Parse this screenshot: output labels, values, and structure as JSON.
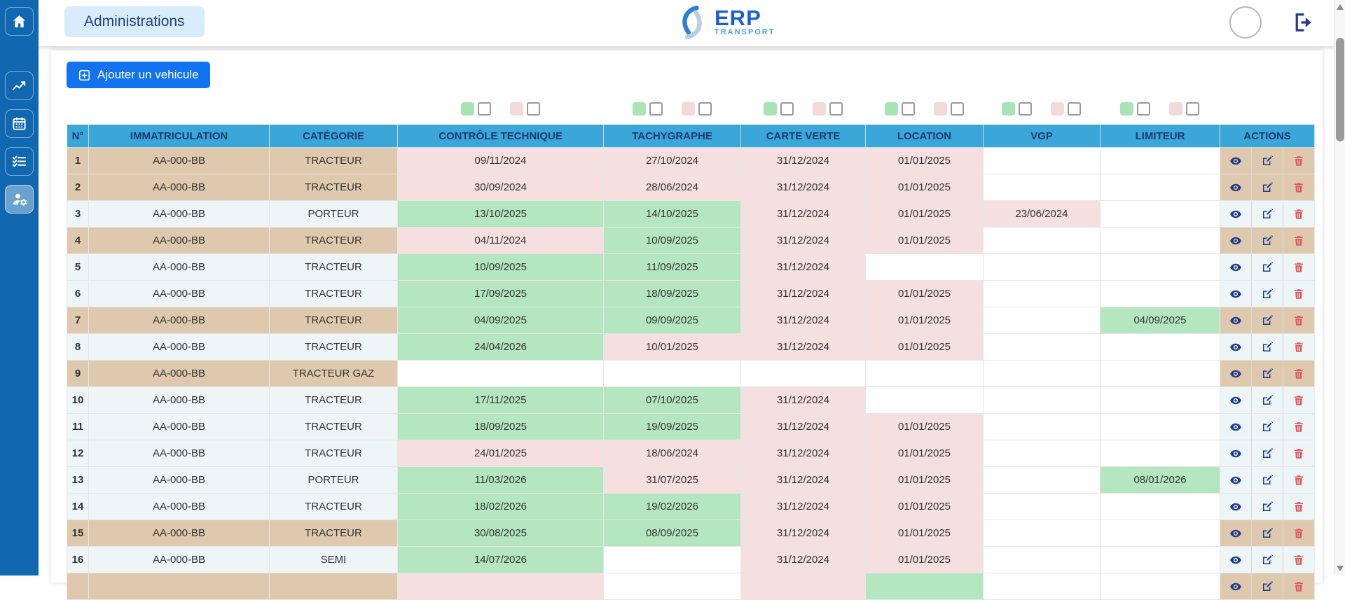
{
  "header": {
    "page_chip": "Administrations",
    "logo": {
      "erp": "ERP",
      "transport": "TRANSPORT"
    }
  },
  "sidebar": {
    "items": [
      {
        "name": "home",
        "icon": "home-icon",
        "active": false
      },
      {
        "name": "statistics",
        "icon": "chart-line-icon",
        "active": false
      },
      {
        "name": "calendar",
        "icon": "calendar-icon",
        "active": false
      },
      {
        "name": "tasks",
        "icon": "checklist-icon",
        "active": false
      },
      {
        "name": "administration",
        "icon": "user-settings-icon",
        "active": true
      }
    ]
  },
  "toolbar": {
    "add_button": "Ajouter un vehicule",
    "add_icon": "plus-square-icon"
  },
  "topbar_icons": {
    "avatar": "avatar-circle",
    "logout": "logout-icon"
  },
  "legend": {
    "groups": [
      {
        "column": "CONTRÔLE TECHNIQUE",
        "pairs": [
          {
            "color": "green",
            "checked": false
          },
          {
            "color": "pink",
            "checked": false
          }
        ]
      },
      {
        "column": "TACHYGRAPHE",
        "pairs": [
          {
            "color": "green",
            "checked": false
          },
          {
            "color": "pink",
            "checked": false
          }
        ]
      },
      {
        "column": "CARTE VERTE",
        "pairs": [
          {
            "color": "green",
            "checked": false
          },
          {
            "color": "pink",
            "checked": false
          }
        ]
      },
      {
        "column": "LOCATION",
        "pairs": [
          {
            "color": "green",
            "checked": false
          },
          {
            "color": "pink",
            "checked": false
          }
        ]
      },
      {
        "column": "VGP",
        "pairs": [
          {
            "color": "green",
            "checked": false
          },
          {
            "color": "pink",
            "checked": false
          }
        ]
      },
      {
        "column": "LIMITEUR",
        "pairs": [
          {
            "color": "green",
            "checked": false
          },
          {
            "color": "pink",
            "checked": false
          }
        ]
      }
    ]
  },
  "table": {
    "columns": [
      "N°",
      "IMMATRICULATION",
      "CATÉGORIE",
      "CONTRÔLE TECHNIQUE",
      "TACHYGRAPHE",
      "CARTE VERTE",
      "LOCATION",
      "VGP",
      "LIMITEUR",
      "ACTIONS"
    ],
    "action_icons": [
      "eye-icon",
      "edit-icon",
      "trash-icon"
    ],
    "rows": [
      {
        "n": "1",
        "immat": "AA-000-BB",
        "cat": "TRACTEUR",
        "shade": "tan",
        "ct": {
          "value": "09/11/2024",
          "status": "late"
        },
        "tachy": {
          "value": "27/10/2024",
          "status": "late"
        },
        "cv": {
          "value": "31/12/2024",
          "status": "late"
        },
        "loc": {
          "value": "01/01/2025",
          "status": "late"
        },
        "vgp": {
          "value": "",
          "status": "none"
        },
        "lim": {
          "value": "",
          "status": "none"
        }
      },
      {
        "n": "2",
        "immat": "AA-000-BB",
        "cat": "TRACTEUR",
        "shade": "tan",
        "ct": {
          "value": "30/09/2024",
          "status": "late"
        },
        "tachy": {
          "value": "28/06/2024",
          "status": "late"
        },
        "cv": {
          "value": "31/12/2024",
          "status": "late"
        },
        "loc": {
          "value": "01/01/2025",
          "status": "late"
        },
        "vgp": {
          "value": "",
          "status": "none"
        },
        "lim": {
          "value": "",
          "status": "none"
        }
      },
      {
        "n": "3",
        "immat": "AA-000-BB",
        "cat": "PORTEUR",
        "shade": "light",
        "ct": {
          "value": "13/10/2025",
          "status": "ok"
        },
        "tachy": {
          "value": "14/10/2025",
          "status": "ok"
        },
        "cv": {
          "value": "31/12/2024",
          "status": "late"
        },
        "loc": {
          "value": "01/01/2025",
          "status": "late"
        },
        "vgp": {
          "value": "23/06/2024",
          "status": "late"
        },
        "lim": {
          "value": "",
          "status": "none"
        }
      },
      {
        "n": "4",
        "immat": "AA-000-BB",
        "cat": "TRACTEUR",
        "shade": "tan",
        "ct": {
          "value": "04/11/2024",
          "status": "late"
        },
        "tachy": {
          "value": "10/09/2025",
          "status": "ok"
        },
        "cv": {
          "value": "31/12/2024",
          "status": "late"
        },
        "loc": {
          "value": "01/01/2025",
          "status": "late"
        },
        "vgp": {
          "value": "",
          "status": "none"
        },
        "lim": {
          "value": "",
          "status": "none"
        }
      },
      {
        "n": "5",
        "immat": "AA-000-BB",
        "cat": "TRACTEUR",
        "shade": "light",
        "ct": {
          "value": "10/09/2025",
          "status": "ok"
        },
        "tachy": {
          "value": "11/09/2025",
          "status": "ok"
        },
        "cv": {
          "value": "31/12/2024",
          "status": "late"
        },
        "loc": {
          "value": "",
          "status": "none"
        },
        "vgp": {
          "value": "",
          "status": "none"
        },
        "lim": {
          "value": "",
          "status": "none"
        }
      },
      {
        "n": "6",
        "immat": "AA-000-BB",
        "cat": "TRACTEUR",
        "shade": "light",
        "ct": {
          "value": "17/09/2025",
          "status": "ok"
        },
        "tachy": {
          "value": "18/09/2025",
          "status": "ok"
        },
        "cv": {
          "value": "31/12/2024",
          "status": "late"
        },
        "loc": {
          "value": "01/01/2025",
          "status": "late"
        },
        "vgp": {
          "value": "",
          "status": "none"
        },
        "lim": {
          "value": "",
          "status": "none"
        }
      },
      {
        "n": "7",
        "immat": "AA-000-BB",
        "cat": "TRACTEUR",
        "shade": "tan",
        "ct": {
          "value": "04/09/2025",
          "status": "ok"
        },
        "tachy": {
          "value": "09/09/2025",
          "status": "ok"
        },
        "cv": {
          "value": "31/12/2024",
          "status": "late"
        },
        "loc": {
          "value": "01/01/2025",
          "status": "late"
        },
        "vgp": {
          "value": "",
          "status": "none"
        },
        "lim": {
          "value": "04/09/2025",
          "status": "ok"
        }
      },
      {
        "n": "8",
        "immat": "AA-000-BB",
        "cat": "TRACTEUR",
        "shade": "light",
        "ct": {
          "value": "24/04/2026",
          "status": "ok"
        },
        "tachy": {
          "value": "10/01/2025",
          "status": "late"
        },
        "cv": {
          "value": "31/12/2024",
          "status": "late"
        },
        "loc": {
          "value": "01/01/2025",
          "status": "late"
        },
        "vgp": {
          "value": "",
          "status": "none"
        },
        "lim": {
          "value": "",
          "status": "none"
        }
      },
      {
        "n": "9",
        "immat": "AA-000-BB",
        "cat": "TRACTEUR GAZ",
        "shade": "tan",
        "ct": {
          "value": "",
          "status": "none"
        },
        "tachy": {
          "value": "",
          "status": "none"
        },
        "cv": {
          "value": "",
          "status": "none"
        },
        "loc": {
          "value": "",
          "status": "none"
        },
        "vgp": {
          "value": "",
          "status": "none"
        },
        "lim": {
          "value": "",
          "status": "none"
        }
      },
      {
        "n": "10",
        "immat": "AA-000-BB",
        "cat": "TRACTEUR",
        "shade": "light",
        "ct": {
          "value": "17/11/2025",
          "status": "ok"
        },
        "tachy": {
          "value": "07/10/2025",
          "status": "ok"
        },
        "cv": {
          "value": "31/12/2024",
          "status": "late"
        },
        "loc": {
          "value": "",
          "status": "none"
        },
        "vgp": {
          "value": "",
          "status": "none"
        },
        "lim": {
          "value": "",
          "status": "none"
        }
      },
      {
        "n": "11",
        "immat": "AA-000-BB",
        "cat": "TRACTEUR",
        "shade": "light",
        "ct": {
          "value": "18/09/2025",
          "status": "ok"
        },
        "tachy": {
          "value": "19/09/2025",
          "status": "ok"
        },
        "cv": {
          "value": "31/12/2024",
          "status": "late"
        },
        "loc": {
          "value": "01/01/2025",
          "status": "late"
        },
        "vgp": {
          "value": "",
          "status": "none"
        },
        "lim": {
          "value": "",
          "status": "none"
        }
      },
      {
        "n": "12",
        "immat": "AA-000-BB",
        "cat": "TRACTEUR",
        "shade": "light",
        "ct": {
          "value": "24/01/2025",
          "status": "late"
        },
        "tachy": {
          "value": "18/06/2024",
          "status": "late"
        },
        "cv": {
          "value": "31/12/2024",
          "status": "late"
        },
        "loc": {
          "value": "01/01/2025",
          "status": "late"
        },
        "vgp": {
          "value": "",
          "status": "none"
        },
        "lim": {
          "value": "",
          "status": "none"
        }
      },
      {
        "n": "13",
        "immat": "AA-000-BB",
        "cat": "PORTEUR",
        "shade": "light",
        "ct": {
          "value": "11/03/2026",
          "status": "ok"
        },
        "tachy": {
          "value": "31/07/2025",
          "status": "late"
        },
        "cv": {
          "value": "31/12/2024",
          "status": "late"
        },
        "loc": {
          "value": "01/01/2025",
          "status": "late"
        },
        "vgp": {
          "value": "",
          "status": "none"
        },
        "lim": {
          "value": "08/01/2026",
          "status": "ok"
        }
      },
      {
        "n": "14",
        "immat": "AA-000-BB",
        "cat": "TRACTEUR",
        "shade": "light",
        "ct": {
          "value": "18/02/2026",
          "status": "ok"
        },
        "tachy": {
          "value": "19/02/2026",
          "status": "ok"
        },
        "cv": {
          "value": "31/12/2024",
          "status": "late"
        },
        "loc": {
          "value": "01/01/2025",
          "status": "late"
        },
        "vgp": {
          "value": "",
          "status": "none"
        },
        "lim": {
          "value": "",
          "status": "none"
        }
      },
      {
        "n": "15",
        "immat": "AA-000-BB",
        "cat": "TRACTEUR",
        "shade": "tan",
        "ct": {
          "value": "30/08/2025",
          "status": "ok"
        },
        "tachy": {
          "value": "08/09/2025",
          "status": "ok"
        },
        "cv": {
          "value": "31/12/2024",
          "status": "late"
        },
        "loc": {
          "value": "01/01/2025",
          "status": "late"
        },
        "vgp": {
          "value": "",
          "status": "none"
        },
        "lim": {
          "value": "",
          "status": "none"
        }
      },
      {
        "n": "16",
        "immat": "AA-000-BB",
        "cat": "SEMI",
        "shade": "light",
        "ct": {
          "value": "14/07/2026",
          "status": "ok"
        },
        "tachy": {
          "value": "",
          "status": "none"
        },
        "cv": {
          "value": "31/12/2024",
          "status": "late"
        },
        "loc": {
          "value": "01/01/2025",
          "status": "late"
        },
        "vgp": {
          "value": "",
          "status": "none"
        },
        "lim": {
          "value": "",
          "status": "none"
        }
      },
      {
        "n": "",
        "immat": "",
        "cat": "",
        "shade": "tan",
        "partial": true,
        "ct": {
          "value": "",
          "status": "late"
        },
        "tachy": {
          "value": "",
          "status": "none"
        },
        "cv": {
          "value": "",
          "status": "late"
        },
        "loc": {
          "value": "",
          "status": "ok"
        },
        "vgp": {
          "value": "",
          "status": "none"
        },
        "lim": {
          "value": "",
          "status": "none"
        }
      }
    ]
  },
  "colors": {
    "sidebar": "#1168b0",
    "header_cell": "#3aa7d8",
    "header_text": "#1b3a72",
    "row_tan": "#dfc9ae",
    "row_light": "#edf5f7",
    "status_ok": "#b4e7c0",
    "status_late": "#f5dfdf",
    "button_blue": "#1372f0",
    "chip_bg": "#d9ecfb",
    "action_blue": "#1e3c8c",
    "action_red": "#e15b66"
  }
}
